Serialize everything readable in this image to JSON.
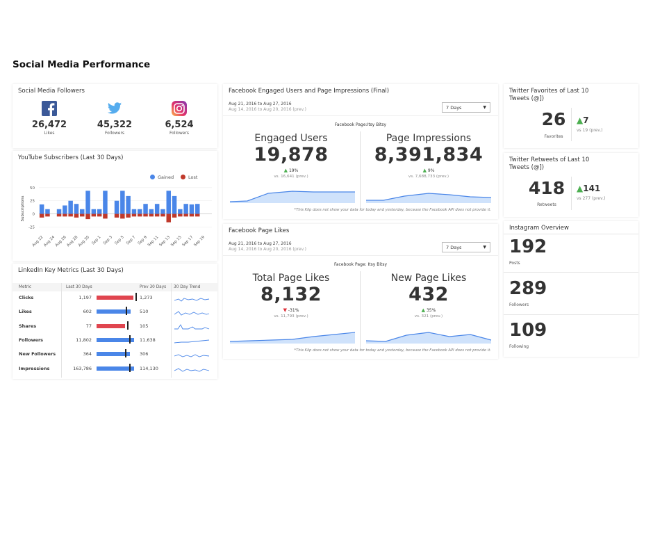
{
  "dashboard": {
    "title": "Social Media Performance"
  },
  "colors": {
    "facebook": "#3b5998",
    "twitter": "#55acee",
    "instagram": "#c13584",
    "gained": "#4a86e8",
    "lost": "#c0392b",
    "red_bar": "#e0454f",
    "up": "#4caf50"
  },
  "social_followers": {
    "title": "Social Media Followers",
    "items": [
      {
        "icon": "facebook-icon",
        "value": "26,472",
        "label": "Likes"
      },
      {
        "icon": "twitter-icon",
        "value": "45,322",
        "label": "Followers"
      },
      {
        "icon": "instagram-icon",
        "value": "6,524",
        "label": "Followers"
      }
    ]
  },
  "youtube": {
    "title": "YouTube Subscribers (Last 30 Days)",
    "legend": [
      "Gained",
      "Lost"
    ],
    "ylabel": "Subscriptions",
    "chart_data": {
      "type": "bar",
      "y_ticks": [
        "50",
        "25",
        "0",
        "-25"
      ],
      "ylim": [
        -35,
        55
      ],
      "tick_labels": [
        "Aug 22",
        "Aug 24",
        "Aug 26",
        "Aug 28",
        "Aug 30",
        "Sep 1",
        "Sep 3",
        "Sep 5",
        "Sep 7",
        "Sep 9",
        "Sep 11",
        "Sep 13",
        "Sep 15",
        "Sep 17",
        "Sep 19"
      ],
      "series": [
        {
          "name": "Gained",
          "values": [
            18,
            9,
            0,
            9,
            16,
            25,
            19,
            9,
            44,
            9,
            9,
            44,
            0,
            25,
            44,
            34,
            9,
            9,
            19,
            9,
            19,
            9,
            44,
            34,
            9,
            19,
            18,
            19,
            0,
            0
          ]
        },
        {
          "name": "Lost",
          "values": [
            -7,
            -5,
            0,
            -5,
            -5,
            -5,
            -7,
            -5,
            -10,
            -5,
            -5,
            -9,
            0,
            -7,
            -9,
            -7,
            -5,
            -5,
            -5,
            -5,
            -5,
            -5,
            -16,
            -7,
            -5,
            -5,
            -5,
            -5,
            0,
            0
          ]
        }
      ]
    }
  },
  "linkedin": {
    "title": "LinkedIn Key Metrics (Last 30 Days)",
    "headers": {
      "metric": "Metric",
      "last": "Last 30 Days",
      "prev": "Prev 30 Days",
      "trend": "30 Day Trend"
    },
    "rows": [
      {
        "metric": "Clicks",
        "last": "1,197",
        "prev": "1,273",
        "bar": 0.94,
        "color": "red"
      },
      {
        "metric": "Likes",
        "last": "602",
        "prev": "510",
        "bar": 0.88,
        "color": "blue"
      },
      {
        "metric": "Shares",
        "last": "77",
        "prev": "105",
        "bar": 0.73,
        "color": "red"
      },
      {
        "metric": "Followers",
        "last": "11,802",
        "prev": "11,638",
        "bar": 0.96,
        "color": "blue"
      },
      {
        "metric": "New Followers",
        "last": "364",
        "prev": "306",
        "bar": 0.86,
        "color": "blue"
      },
      {
        "metric": "Impressions",
        "last": "163,786",
        "prev": "114,130",
        "bar": 0.96,
        "color": "blue"
      }
    ]
  },
  "fb_engaged": {
    "title": "Facebook Engaged Users and Page Impressions (Final)",
    "range": "Aug 21, 2016 to Aug 27, 2016",
    "prev_range": "Aug 14, 2016 to Aug 20, 2016 (prev.)",
    "select": "7 Days",
    "page": "Facebook Page:Itsy Bitsy",
    "left": {
      "heading": "Engaged Users",
      "value": "19,878",
      "pct": "19%",
      "prev": "vs. 16,641 (prev.)"
    },
    "right": {
      "heading": "Page Impressions",
      "value": "8,391,834",
      "pct": "9%",
      "prev": "vs. 7,688,733 (prev.)"
    },
    "note": "*This Klip does not show your data for today and yesterday, because the Facebook API does not provide it."
  },
  "fb_likes": {
    "title": "Facebook Page Likes",
    "range": "Aug 21, 2016 to Aug 27, 2016",
    "prev_range": "Aug 14, 2016 to Aug 20, 2016 (prev.)",
    "select": "7 Days",
    "page": "Facebook Page: Itsy Bitsy",
    "left": {
      "heading": "Total Page Likes",
      "value": "8,132",
      "pct": "-31%",
      "prev": "vs. 11,793 (prev.)"
    },
    "right": {
      "heading": "New Page Likes",
      "value": "432",
      "pct": "35%",
      "prev": "vs. 321 (prev.)"
    },
    "note": "*This Klip does not show your data for today and yesterday, because the Facebook API does not provide it."
  },
  "tw_fav": {
    "title": "Twitter Favorites of Last 10 Tweets (@])",
    "value": "26",
    "label": "Favorites",
    "delta": "7",
    "vs": "vs 19 (prev.)"
  },
  "tw_rt": {
    "title": "Twitter Retweets of Last 10 Tweets (@])",
    "value": "418",
    "label": "Retweets",
    "delta": "141",
    "vs": "vs 277 (prev.)"
  },
  "instagram": {
    "title": "Instagram Overview",
    "items": [
      {
        "value": "192",
        "label": "Posts"
      },
      {
        "value": "289",
        "label": "Followers"
      },
      {
        "value": "109",
        "label": "Following"
      }
    ]
  }
}
